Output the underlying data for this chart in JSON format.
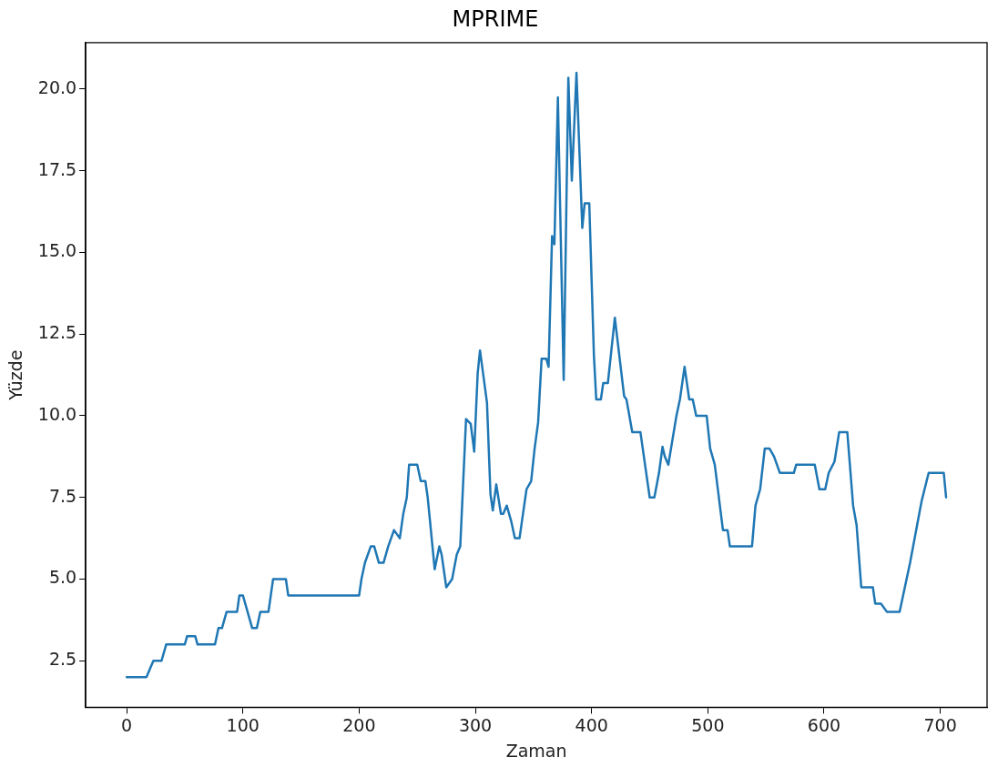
{
  "chart_data": {
    "type": "line",
    "title": "MPRIME",
    "xlabel": "Zaman",
    "ylabel": "Yüzde",
    "xlim": [
      -35.25,
      740.25
    ],
    "ylim": [
      1.075,
      21.425
    ],
    "xticks": [
      0,
      100,
      200,
      300,
      400,
      500,
      600,
      700
    ],
    "yticks": [
      2.5,
      {
        "value": 5,
        "label": "5.0"
      },
      7.5,
      {
        "value": 10,
        "label": "10.0"
      },
      12.5,
      {
        "value": 15,
        "label": "15.0"
      },
      17.5,
      {
        "value": 20,
        "label": "20.0"
      }
    ],
    "grid": false,
    "legend": false,
    "marker": "none",
    "line_style": "solid",
    "series": [
      {
        "color": "#1f77b4",
        "x": [
          0,
          17,
          20,
          23,
          30,
          34,
          50,
          52,
          59,
          61,
          76,
          79,
          82,
          84,
          86,
          95,
          97,
          100,
          104,
          108,
          112,
          115,
          122,
          124,
          126,
          137,
          139,
          200,
          202,
          205,
          210,
          213,
          217,
          221,
          225,
          230,
          235,
          238,
          241,
          243,
          250,
          253,
          257,
          259,
          265,
          269,
          271,
          275,
          280,
          284,
          287,
          292,
          296,
          299,
          302,
          304,
          310,
          313,
          315,
          318,
          322,
          324,
          327,
          331,
          334,
          338,
          340,
          344,
          348,
          351,
          354,
          357,
          361,
          363,
          366,
          368,
          371,
          376,
          380,
          383,
          387,
          392,
          394,
          398,
          402,
          404,
          408,
          410,
          414,
          420,
          428,
          430,
          435,
          442,
          446,
          450,
          454,
          458,
          461,
          463,
          466,
          473,
          476,
          480,
          484,
          487,
          490,
          499,
          502,
          506,
          513,
          517,
          519,
          538,
          541,
          545,
          549,
          553,
          557,
          562,
          574,
          576,
          592,
          596,
          601,
          604,
          609,
          613,
          620,
          625,
          628,
          632,
          642,
          644,
          649,
          654,
          665,
          674,
          684,
          690,
          703,
          705
        ],
        "values": [
          2,
          2,
          2.25,
          2.5,
          2.5,
          3,
          3,
          3.25,
          3.25,
          3,
          3,
          3.5,
          3.5,
          3.75,
          4,
          4,
          4.5,
          4.5,
          4,
          3.5,
          3.5,
          4,
          4,
          4.5,
          5,
          5,
          4.5,
          4.5,
          5,
          5.5,
          6,
          6,
          5.5,
          5.5,
          6,
          6.5,
          6.25,
          7,
          7.5,
          8.5,
          8.5,
          8,
          8,
          7.5,
          5.3,
          6,
          5.75,
          4.75,
          5,
          5.75,
          6,
          9.9,
          9.75,
          8.9,
          11.3,
          12,
          10.4,
          7.6,
          7.1,
          7.9,
          7,
          7,
          7.25,
          6.75,
          6.25,
          6.25,
          6.75,
          7.75,
          8,
          9,
          9.8,
          11.75,
          11.75,
          11.5,
          15.5,
          15.25,
          19.75,
          11.1,
          20.35,
          17.2,
          20.5,
          15.75,
          16.5,
          16.5,
          11.85,
          10.5,
          10.5,
          11,
          11,
          13,
          10.6,
          10.5,
          9.5,
          9.5,
          8.5,
          7.5,
          7.5,
          8.25,
          9.05,
          8.75,
          8.5,
          10,
          10.5,
          11.5,
          10.5,
          10.5,
          10,
          10,
          9,
          8.5,
          6.5,
          6.5,
          6,
          6,
          7.25,
          7.75,
          9,
          9,
          8.75,
          8.25,
          8.25,
          8.5,
          8.5,
          7.75,
          7.75,
          8.25,
          8.6,
          9.5,
          9.5,
          7.25,
          6.65,
          4.75,
          4.75,
          4.25,
          4.25,
          4,
          4,
          5.5,
          7.4,
          8.25,
          8.25,
          7.5
        ]
      }
    ]
  }
}
